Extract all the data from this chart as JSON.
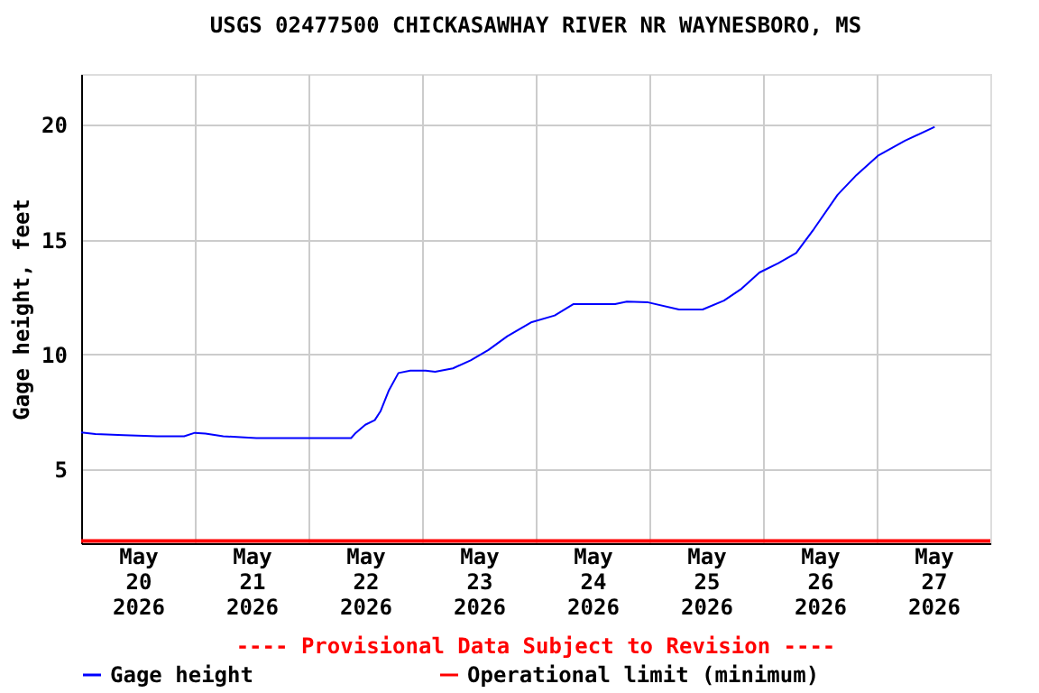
{
  "chart_data": {
    "type": "line",
    "title": "USGS 02477500 CHICKASAWHAY RIVER NR WAYNESBORO, MS",
    "ylabel": "Gage height, feet",
    "annotations": [
      "---- Provisional Data Subject to Revision ----"
    ],
    "xlim": [
      "2026-05-20",
      "2026-05-28"
    ],
    "xticks": [
      {
        "value": "2026-05-20T12:00",
        "label": "May\n20\n2026"
      },
      {
        "value": "2026-05-21",
        "label": null
      },
      {
        "value": "2026-05-21T12:00",
        "label": "May\n21\n2026"
      },
      {
        "value": "2026-05-22",
        "label": null
      },
      {
        "value": "2026-05-22T12:00",
        "label": "May\n22\n2026"
      },
      {
        "value": "2026-05-23",
        "label": null
      },
      {
        "value": "2026-05-23T12:00",
        "label": "May\n23\n2026"
      },
      {
        "value": "2026-05-24",
        "label": null
      },
      {
        "value": "2026-05-24T12:00",
        "label": "May\n24\n2026"
      },
      {
        "value": "2026-05-25",
        "label": null
      },
      {
        "value": "2026-05-25T12:00",
        "label": "May\n25\n2026"
      },
      {
        "value": "2026-05-26",
        "label": null
      },
      {
        "value": "2026-05-26T12:00",
        "label": "May\n26\n2026"
      },
      {
        "value": "2026-05-27",
        "label": null
      },
      {
        "value": "2026-05-27T12:00",
        "label": "May\n27\n2026"
      }
    ],
    "ylim": [
      1.8,
      22.2
    ],
    "yticks": [
      5,
      10,
      15,
      20
    ],
    "grid": true,
    "legend": "bottom",
    "ref_lines": [
      {
        "axis": "y",
        "value": 1.9,
        "label": "Operational limit (minimum)",
        "color": "#ff0000"
      }
    ],
    "series": [
      {
        "name": "Gage height",
        "color": "#0000ff",
        "x": [
          "2026-05-20T00:00",
          "2026-05-20T03:00",
          "2026-05-20T09:00",
          "2026-05-20T16:00",
          "2026-05-20T21:45",
          "2026-05-21T00:00",
          "2026-05-21T02:15",
          "2026-05-21T06:00",
          "2026-05-21T13:00",
          "2026-05-22T09:00",
          "2026-05-22T10:00",
          "2026-05-22T12:00",
          "2026-05-22T14:00",
          "2026-05-22T15:15",
          "2026-05-22T17:00",
          "2026-05-22T19:00",
          "2026-05-22T21:30",
          "2026-05-23T00:45",
          "2026-05-23T02:45",
          "2026-05-23T06:30",
          "2026-05-23T10:15",
          "2026-05-23T14:00",
          "2026-05-23T18:00",
          "2026-05-23T23:00",
          "2026-05-24T04:00",
          "2026-05-24T08:00",
          "2026-05-24T14:15",
          "2026-05-24T16:45",
          "2026-05-24T19:15",
          "2026-05-24T23:45",
          "2026-05-25T06:15",
          "2026-05-25T11:15",
          "2026-05-25T15:45",
          "2026-05-25T19:30",
          "2026-05-25T23:15",
          "2026-05-26T03:15",
          "2026-05-26T07:00",
          "2026-05-26T10:45",
          "2026-05-26T15:45",
          "2026-05-26T19:45",
          "2026-05-27T00:15",
          "2026-05-27T06:00",
          "2026-05-27T12:15"
        ],
        "values": [
          6.62,
          6.55,
          6.5,
          6.45,
          6.45,
          6.6,
          6.57,
          6.45,
          6.37,
          6.37,
          6.6,
          6.95,
          7.15,
          7.55,
          8.45,
          9.2,
          9.3,
          9.3,
          9.25,
          9.4,
          9.75,
          10.2,
          10.8,
          11.4,
          11.7,
          12.2,
          12.2,
          12.2,
          12.3,
          12.27,
          11.96,
          11.96,
          12.35,
          12.87,
          13.57,
          13.98,
          14.42,
          15.46,
          16.95,
          17.81,
          18.64,
          19.3,
          19.9
        ]
      }
    ]
  }
}
